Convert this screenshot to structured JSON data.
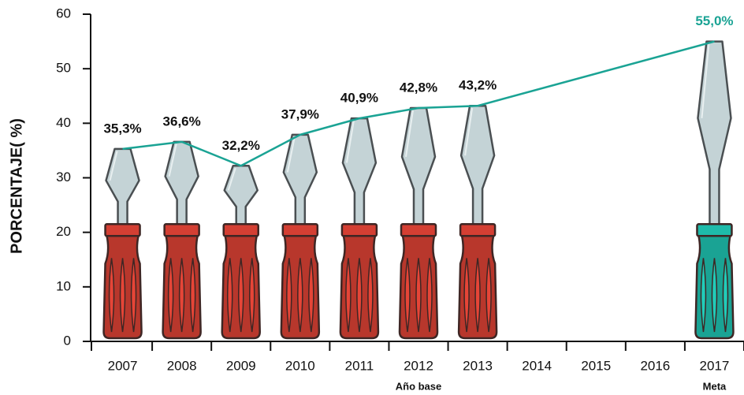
{
  "chart_data": {
    "type": "line",
    "y_label": "PORCENTAJE( %)",
    "x": [
      2007,
      2008,
      2009,
      2010,
      2011,
      2012,
      2013,
      2017
    ],
    "series": [
      {
        "color": "#1aa394",
        "values": [
          35.3,
          36.6,
          32.2,
          37.9,
          40.9,
          42.8,
          43.2,
          55.0
        ],
        "value_labels": [
          "35,3%",
          "36,6%",
          "32,2%",
          "37,9%",
          "40,9%",
          "42,8%",
          "43,2%",
          "55,0%"
        ],
        "point_colors": [
          "#b8372c",
          "#b8372c",
          "#b8372c",
          "#b8372c",
          "#b8372c",
          "#b8372c",
          "#b8372c",
          "#1aa394"
        ]
      }
    ],
    "xlim": [
      2006.5,
      2017.5
    ],
    "xticks": [
      2007,
      2008,
      2009,
      2010,
      2011,
      2012,
      2013,
      2014,
      2015,
      2016,
      2017
    ],
    "ylim": [
      0,
      60
    ],
    "yticks": [
      0,
      10,
      20,
      30,
      40,
      50,
      60
    ],
    "annotations": [
      {
        "x": 2012,
        "text": "Año base"
      },
      {
        "x": 2017,
        "text": "Meta"
      }
    ]
  }
}
